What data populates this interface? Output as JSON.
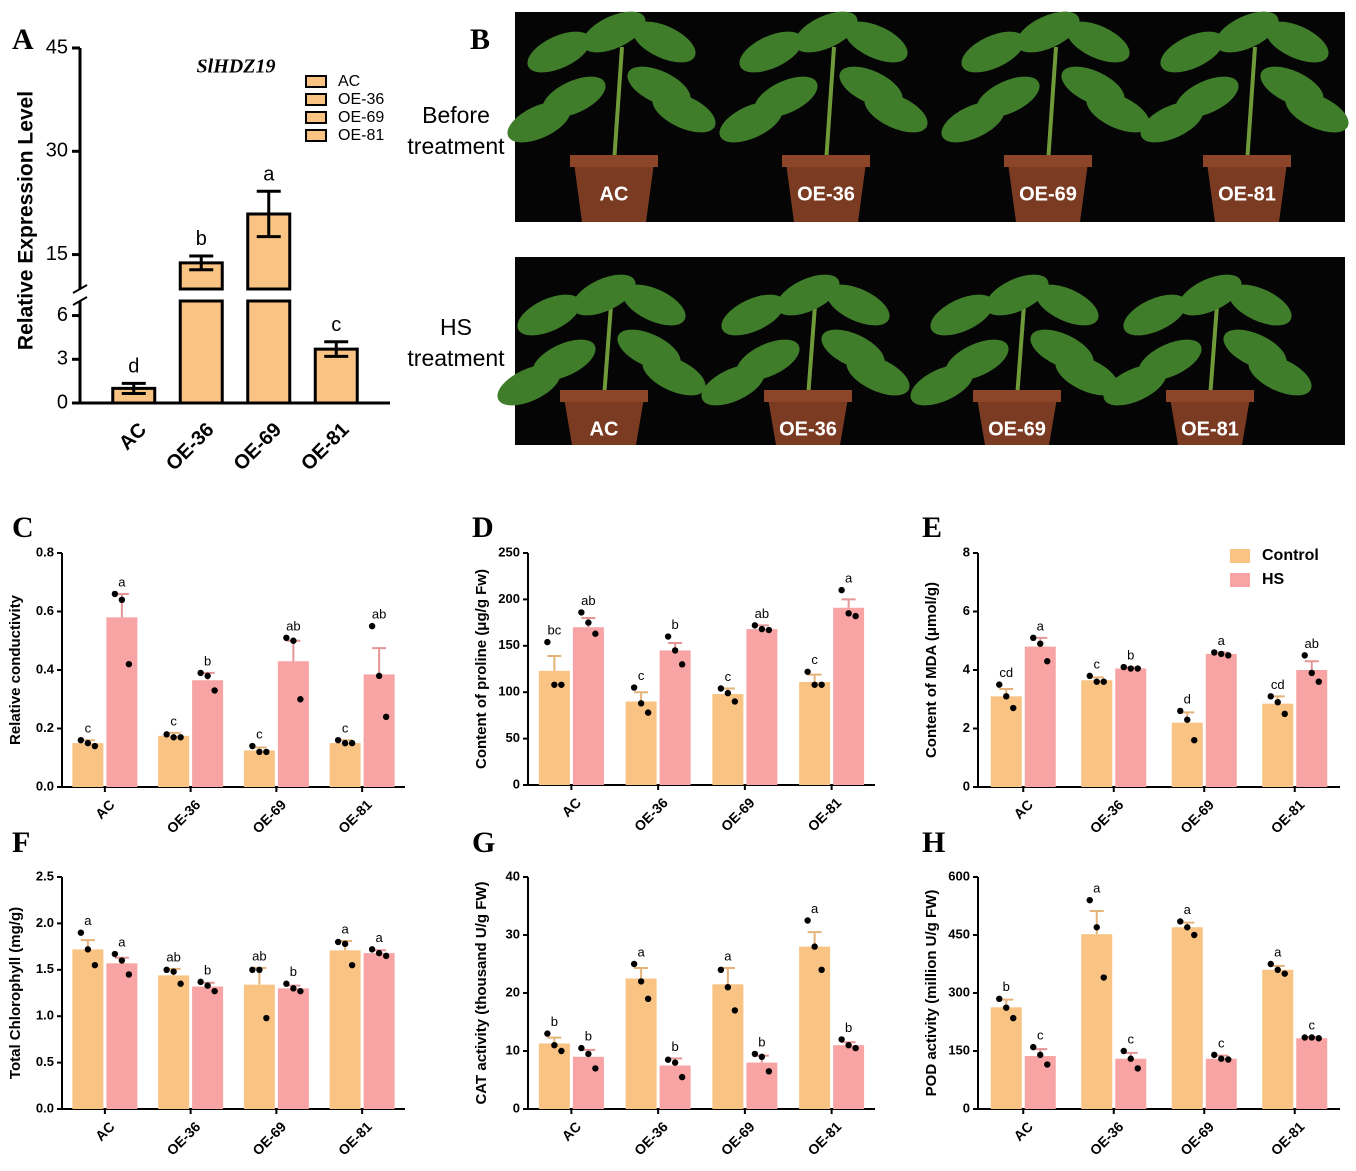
{
  "chart_data": [
    {
      "type": "bar",
      "panel": "A",
      "title": "SlHDZ19",
      "ylabel": "Relative Expression Level",
      "categories": [
        "AC",
        "OE-36",
        "OE-69",
        "OE-81"
      ],
      "values": [
        1.0,
        13.8,
        20.9,
        3.7
      ],
      "errors": [
        0.35,
        1.0,
        3.3,
        0.5
      ],
      "letters": [
        "d",
        "b",
        "a",
        "c"
      ],
      "color": "#f9c383",
      "ylim": [
        0,
        45
      ],
      "ybreak": [
        7,
        10
      ],
      "yticks": [
        0,
        3,
        6,
        15,
        30,
        45
      ],
      "legend": "upper right"
    },
    {
      "type": "grouped_bar",
      "panel": "C",
      "ylabel": "Relative conductivity",
      "categories": [
        "AC",
        "OE-36",
        "OE-69",
        "OE-81"
      ],
      "ylim": [
        0,
        0.8
      ],
      "yticks": [
        {
          "value": 0,
          "label": "0.0"
        },
        0.2,
        0.4,
        0.6,
        0.8
      ],
      "series": [
        {
          "color": "#f9c384",
          "values": [
            0.15,
            0.175,
            0.125,
            0.15
          ],
          "errors": [
            0.01,
            0.01,
            0.01,
            0.01
          ],
          "letters": [
            "c",
            "c",
            "c",
            "c"
          ],
          "points": [
            [
              0.16,
              0.15,
              0.14
            ],
            [
              0.18,
              0.17,
              0.17
            ],
            [
              0.14,
              0.12,
              0.12
            ],
            [
              0.16,
              0.15,
              0.15
            ]
          ]
        },
        {
          "color": "#f8a3a4",
          "values": [
            0.58,
            0.365,
            0.43,
            0.385
          ],
          "errors": [
            0.08,
            0.025,
            0.07,
            0.09
          ],
          "letters": [
            "a",
            "b",
            "ab",
            "ab"
          ],
          "points": [
            [
              0.66,
              0.64,
              0.42
            ],
            [
              0.39,
              0.38,
              0.33
            ],
            [
              0.51,
              0.5,
              0.3
            ],
            [
              0.55,
              0.38,
              0.24
            ]
          ]
        }
      ]
    },
    {
      "type": "grouped_bar",
      "panel": "D",
      "ylabel": "Content of proline (μg/g Fw)",
      "categories": [
        "AC",
        "OE-36",
        "OE-69",
        "OE-81"
      ],
      "ylim": [
        0,
        250
      ],
      "yticks": [
        0,
        50,
        100,
        150,
        200,
        250
      ],
      "series": [
        {
          "color": "#f9c384",
          "values": [
            123,
            90,
            98,
            111
          ],
          "errors": [
            16,
            10,
            6,
            8
          ],
          "letters": [
            "bc",
            "c",
            "c",
            "c"
          ],
          "points": [
            [
              154,
              108,
              108
            ],
            [
              105,
              88,
              78
            ],
            [
              104,
              99,
              90
            ],
            [
              122,
              108,
              108
            ]
          ]
        },
        {
          "color": "#f8a3a4",
          "values": [
            170,
            145,
            168,
            191
          ],
          "errors": [
            10,
            8,
            4,
            9
          ],
          "letters": [
            "ab",
            "b",
            "ab",
            "a"
          ],
          "points": [
            [
              186,
              175,
              163
            ],
            [
              160,
              145,
              130
            ],
            [
              172,
              168,
              167
            ],
            [
              210,
              185,
              182
            ]
          ]
        }
      ]
    },
    {
      "type": "grouped_bar",
      "panel": "E",
      "ylabel": "Content of MDA (μmol/g)",
      "categories": [
        "AC",
        "OE-36",
        "OE-69",
        "OE-81"
      ],
      "ylim": [
        0,
        8
      ],
      "yticks": [
        0,
        2,
        4,
        6,
        8
      ],
      "legend": "upper right",
      "series": [
        {
          "name": "Control",
          "color": "#f9c384",
          "values": [
            3.1,
            3.65,
            2.2,
            2.85
          ],
          "errors": [
            0.25,
            0.1,
            0.35,
            0.25
          ],
          "letters": [
            "cd",
            "c",
            "d",
            "cd"
          ],
          "points": [
            [
              3.5,
              3.1,
              2.7
            ],
            [
              3.8,
              3.6,
              3.6
            ],
            [
              2.6,
              2.3,
              1.6
            ],
            [
              3.1,
              2.9,
              2.5
            ]
          ]
        },
        {
          "name": "HS",
          "color": "#f8a3a4",
          "values": [
            4.8,
            4.05,
            4.55,
            4.0
          ],
          "errors": [
            0.3,
            0.03,
            0.05,
            0.3
          ],
          "letters": [
            "a",
            "b",
            "a",
            "ab"
          ],
          "points": [
            [
              5.1,
              4.9,
              4.3
            ],
            [
              4.1,
              4.05,
              4.05
            ],
            [
              4.6,
              4.55,
              4.5
            ],
            [
              4.5,
              3.9,
              3.6
            ]
          ]
        }
      ]
    },
    {
      "type": "grouped_bar",
      "panel": "F",
      "ylabel": "Total Chlorophyll (mg/g)",
      "categories": [
        "AC",
        "OE-36",
        "OE-69",
        "OE-81"
      ],
      "ylim": [
        0,
        2.5
      ],
      "yticks": [
        {
          "value": 0,
          "label": "0.0"
        },
        0.5,
        {
          "value": 1,
          "label": "1.0"
        },
        1.5,
        {
          "value": 2,
          "label": "2.0"
        },
        2.5
      ],
      "series": [
        {
          "color": "#f9c384",
          "values": [
            1.72,
            1.44,
            1.34,
            1.71
          ],
          "errors": [
            0.1,
            0.07,
            0.18,
            0.1
          ],
          "letters": [
            "a",
            "ab",
            "ab",
            "a"
          ],
          "points": [
            [
              1.9,
              1.72,
              1.55
            ],
            [
              1.5,
              1.48,
              1.35
            ],
            [
              1.5,
              1.5,
              0.98
            ],
            [
              1.8,
              1.78,
              1.55
            ]
          ]
        },
        {
          "color": "#f8a3a4",
          "values": [
            1.57,
            1.32,
            1.3,
            1.68
          ],
          "errors": [
            0.06,
            0.04,
            0.03,
            0.03
          ],
          "letters": [
            "a",
            "b",
            "b",
            "a"
          ],
          "points": [
            [
              1.67,
              1.6,
              1.45
            ],
            [
              1.37,
              1.33,
              1.27
            ],
            [
              1.35,
              1.3,
              1.27
            ],
            [
              1.72,
              1.68,
              1.65
            ]
          ]
        }
      ]
    },
    {
      "type": "grouped_bar",
      "panel": "G",
      "ylabel": "CAT activity (thousand U/g FW)",
      "categories": [
        "AC",
        "OE-36",
        "OE-69",
        "OE-81"
      ],
      "ylim": [
        0,
        40
      ],
      "yticks": [
        0,
        10,
        20,
        30,
        40
      ],
      "series": [
        {
          "color": "#f9c384",
          "values": [
            11.3,
            22.5,
            21.5,
            28
          ],
          "errors": [
            1,
            1.8,
            2.8,
            2.5
          ],
          "letters": [
            "b",
            "a",
            "a",
            "a"
          ],
          "points": [
            [
              13,
              11,
              10
            ],
            [
              25,
              22,
              19
            ],
            [
              24,
              21,
              17
            ],
            [
              32.5,
              28,
              24
            ]
          ]
        },
        {
          "color": "#f8a3a4",
          "values": [
            9,
            7.5,
            8,
            11
          ],
          "errors": [
            1.2,
            1.2,
            1.2,
            0.5
          ],
          "letters": [
            "b",
            "b",
            "b",
            "b"
          ],
          "points": [
            [
              10.5,
              9.5,
              7
            ],
            [
              8.5,
              8,
              5.5
            ],
            [
              9.5,
              9,
              6.5
            ],
            [
              12,
              11,
              10.5
            ]
          ]
        }
      ]
    },
    {
      "type": "grouped_bar",
      "panel": "H",
      "ylabel": "POD activity  (million U/g FW)",
      "categories": [
        "AC",
        "OE-36",
        "OE-69",
        "OE-81"
      ],
      "ylim": [
        0,
        600
      ],
      "yticks": [
        0,
        150,
        300,
        450,
        600
      ],
      "series": [
        {
          "color": "#f9c384",
          "values": [
            263,
            452,
            470,
            360
          ],
          "errors": [
            20,
            60,
            12,
            10
          ],
          "letters": [
            "b",
            "a",
            "a",
            "a"
          ],
          "points": [
            [
              285,
              262,
              235
            ],
            [
              540,
              470,
              340
            ],
            [
              485,
              470,
              450
            ],
            [
              375,
              360,
              350
            ]
          ]
        },
        {
          "color": "#f8a3a4",
          "values": [
            137,
            130,
            130,
            183
          ],
          "errors": [
            18,
            15,
            8,
            3
          ],
          "letters": [
            "c",
            "c",
            "c",
            "c"
          ],
          "points": [
            [
              160,
              140,
              115
            ],
            [
              150,
              130,
              105
            ],
            [
              140,
              130,
              128
            ],
            [
              185,
              185,
              183
            ]
          ]
        }
      ]
    }
  ],
  "photos": {
    "panel": "B",
    "rows": [
      {
        "label": "Before treatment",
        "pots": [
          "AC",
          "OE-36",
          "OE-69",
          "OE-81"
        ]
      },
      {
        "label": "HS treatment",
        "pots": [
          "AC",
          "OE-36",
          "OE-69",
          "OE-81"
        ]
      }
    ]
  }
}
